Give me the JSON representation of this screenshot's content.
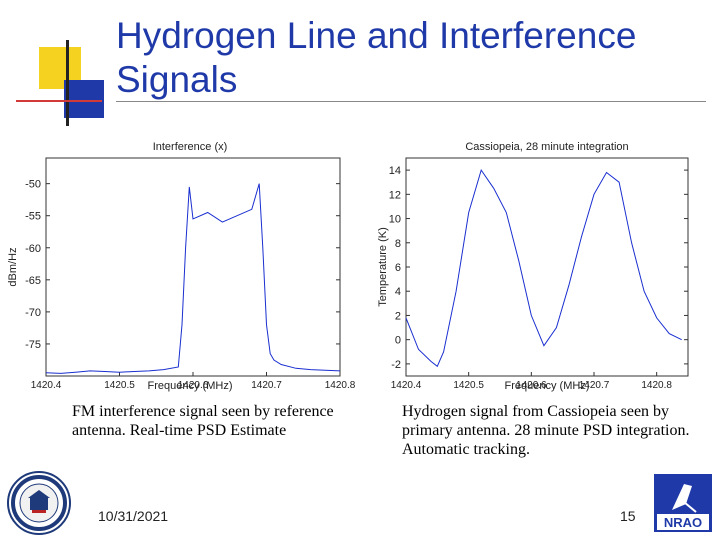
{
  "slide": {
    "title_line1": "Hydrogen Line and Interference",
    "title_line2": "Signals",
    "date": "10/31/2021",
    "page_number": "15",
    "colors": {
      "title": "#1f3aa8",
      "trace": "#1a2fd0"
    }
  },
  "captions": {
    "left": "FM interference signal seen by reference antenna.  Real-time PSD Estimate",
    "right": "Hydrogen signal from Cassiopeia seen by primary antenna.  28 minute PSD integration.  Automatic tracking."
  },
  "logos": {
    "seal_icon": "university-seal-icon",
    "nrao_icon": "nrao-logo-icon",
    "nrao_text": "NRAO"
  },
  "chart_data": [
    {
      "type": "line",
      "title": "Interference (x)",
      "xlabel": "Frequency (MHz)",
      "ylabel": "dBm/Hz",
      "xlim": [
        1420.4,
        1420.8
      ],
      "ylim": [
        -80,
        -46
      ],
      "xticks": [
        "1420.4",
        "1420.5",
        "1420.6",
        "1420.7",
        "1420.8"
      ],
      "yticks": [
        "-50",
        "-55",
        "-60",
        "-65",
        "-70",
        "-75"
      ],
      "grid": false,
      "series": [
        {
          "x": [
            1420.4,
            1420.42,
            1420.44,
            1420.46,
            1420.48,
            1420.5,
            1420.52,
            1420.54,
            1420.56,
            1420.58,
            1420.585,
            1420.59,
            1420.595,
            1420.6,
            1420.62,
            1420.64,
            1420.66,
            1420.68,
            1420.69,
            1420.695,
            1420.7,
            1420.705,
            1420.71,
            1420.72,
            1420.74,
            1420.76,
            1420.78,
            1420.8
          ],
          "y": [
            -79.5,
            -79.6,
            -79.4,
            -79.2,
            -79.3,
            -79.4,
            -79.3,
            -79.2,
            -79.0,
            -78.6,
            -72,
            -60,
            -50.5,
            -55.5,
            -54.5,
            -56,
            -55,
            -54,
            -50,
            -60,
            -72,
            -76.5,
            -77.5,
            -78.2,
            -78.8,
            -79.0,
            -79.1,
            -79.2
          ]
        }
      ]
    },
    {
      "type": "line",
      "title": "Cassiopeia, 28 minute integration",
      "xlabel": "Frequency (MHz)",
      "ylabel": "Temperature (K)",
      "xlim": [
        1420.4,
        1420.85
      ],
      "ylim": [
        -3,
        15
      ],
      "xticks": [
        "1420.4",
        "1420.5",
        "1420.6",
        "1420.7",
        "1420.8"
      ],
      "yticks": [
        "14",
        "12",
        "10",
        "8",
        "6",
        "4",
        "2",
        "0",
        "-2"
      ],
      "grid": false,
      "series": [
        {
          "x": [
            1420.4,
            1420.42,
            1420.44,
            1420.45,
            1420.46,
            1420.48,
            1420.5,
            1420.52,
            1420.54,
            1420.56,
            1420.58,
            1420.6,
            1420.62,
            1420.64,
            1420.66,
            1420.68,
            1420.7,
            1420.72,
            1420.74,
            1420.76,
            1420.78,
            1420.8,
            1420.82,
            1420.84
          ],
          "y": [
            1.8,
            -0.8,
            -1.8,
            -2.2,
            -1.0,
            4.0,
            10.5,
            14.0,
            12.5,
            10.5,
            6.5,
            2.0,
            -0.5,
            1.0,
            4.5,
            8.5,
            12.0,
            13.8,
            13.0,
            8.0,
            4.0,
            1.8,
            0.5,
            0.0
          ]
        }
      ]
    }
  ]
}
